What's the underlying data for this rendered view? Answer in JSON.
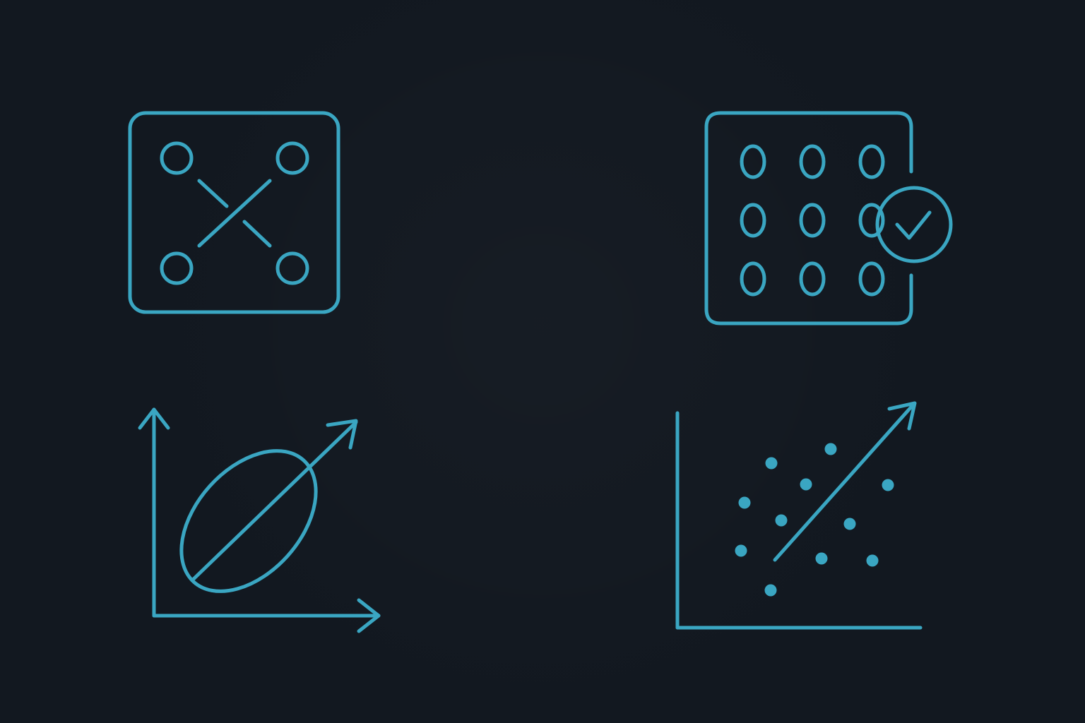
{
  "colors": {
    "background": "#121820",
    "icon_stroke": "#3aa6c2",
    "icon_dot": "#3aa6c2"
  },
  "icons": [
    {
      "id": "transpose-matrix",
      "semantic": "matrix-transpose-icon"
    },
    {
      "id": "zero-matrix-check",
      "semantic": "zero-matrix-check-icon"
    },
    {
      "id": "ellipse-principal-axis",
      "semantic": "ellipse-principal-axis-icon"
    },
    {
      "id": "scatter-regression",
      "semantic": "scatter-regression-icon"
    }
  ],
  "zero_matrix": {
    "cells": [
      "0",
      "0",
      "0",
      "0",
      "0",
      "0",
      "0",
      "0",
      "0"
    ]
  }
}
